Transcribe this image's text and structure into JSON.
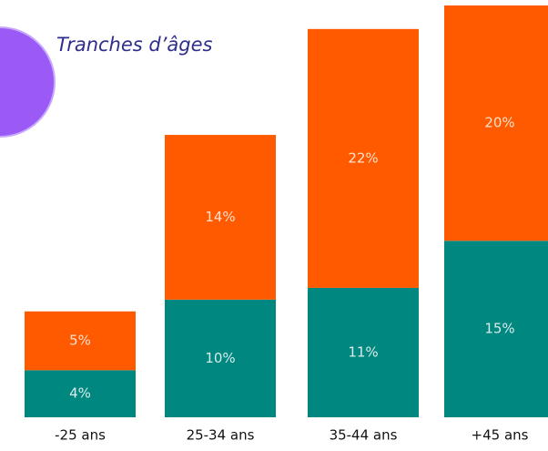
{
  "chart_data": {
    "type": "stacked_bar",
    "title": "Tranches d’âges",
    "categories": [
      "-25 ans",
      "25-34 ans",
      "35-44 ans",
      "+45 ans"
    ],
    "series": [
      {
        "color": "#00877f",
        "values": [
          4,
          10,
          11,
          15
        ]
      },
      {
        "color": "#ff5a00",
        "values": [
          5,
          14,
          22,
          20
        ]
      }
    ],
    "value_labels": [
      [
        "4%",
        "10%",
        "11%",
        "15%"
      ],
      [
        "5%",
        "14%",
        "22%",
        "20%"
      ]
    ]
  }
}
